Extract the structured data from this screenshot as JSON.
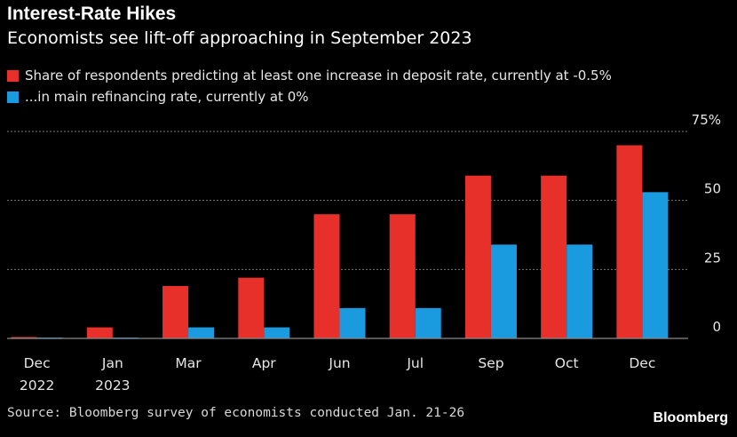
{
  "header": {
    "title": "Interest-Rate Hikes",
    "subtitle": "Economists see lift-off approaching in September 2023"
  },
  "legend": [
    {
      "label": "Share of respondents predicting at least one increase in deposit rate, currently at -0.5%",
      "color": "#e8302a"
    },
    {
      "label": "...in main refinancing rate, currently at 0%",
      "color": "#1a9be0"
    }
  ],
  "footer": {
    "source": "Source: Bloomberg survey of economists conducted Jan. 21-26",
    "brand": "Bloomberg"
  },
  "chart_data": {
    "type": "bar",
    "categories": [
      [
        "Dec",
        "2022"
      ],
      [
        "Jan",
        "2023"
      ],
      [
        "Mar"
      ],
      [
        "Apr"
      ],
      [
        "Jun"
      ],
      [
        "Jul"
      ],
      [
        "Sep"
      ],
      [
        "Oct"
      ],
      [
        "Dec"
      ]
    ],
    "series": [
      {
        "name": "Share of respondents predicting at least one increase in deposit rate, currently at -0.5%",
        "color": "#e8302a",
        "values": [
          0.5,
          4,
          19,
          22,
          45,
          45,
          59,
          59,
          70
        ]
      },
      {
        "name": "...in main refinancing rate, currently at 0%",
        "color": "#1a9be0",
        "values": [
          0.3,
          0.3,
          4,
          4,
          11,
          11,
          34,
          34,
          53
        ]
      }
    ],
    "ylim": [
      0,
      75
    ],
    "yticks": [
      0,
      25,
      50,
      75
    ],
    "ytick_labels": [
      "0",
      "25",
      "50",
      "75%"
    ],
    "y_axis_side": "right",
    "grid": true
  }
}
